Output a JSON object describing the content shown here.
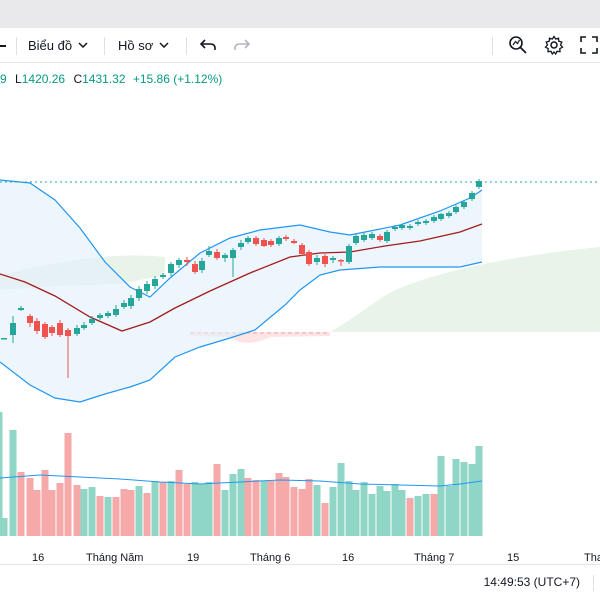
{
  "toolbar": {
    "chart_menu_label": "Biểu đồ",
    "profile_menu_label": "Hồ sơ",
    "icons": [
      "chevron-down-icon",
      "undo-icon",
      "redo-icon",
      "zoom-search-icon",
      "gear-icon",
      "fullscreen-icon"
    ]
  },
  "legend": {
    "low_prefix": "L",
    "low": "1420.26",
    "close_prefix": "C",
    "close": "1431.32",
    "change": "+15.86 (+1.12%)",
    "truncated_lead": "9"
  },
  "axis": {
    "labels": [
      "16",
      "Tháng Năm",
      "19",
      "Tháng 6",
      "16",
      "Tháng 7",
      "15",
      "Tha"
    ]
  },
  "status": {
    "clock": "14:49:53 (UTC+7)"
  },
  "colors": {
    "up": "#26a69a",
    "down": "#ef5350",
    "up_volume": "#8fd6c6",
    "down_volume": "#f6a9a9",
    "bollinger": "#2196f3",
    "basis": "#a31c1c",
    "cloud_green": "#e8f3ea",
    "cloud_red": "#fde5e5",
    "volume_ma": "#2196f3",
    "last_price_line": "#26a69a"
  },
  "chart_data": {
    "type": "candlestick",
    "overlays": [
      "bollinger-bands",
      "ichimoku-cloud",
      "volume-moving-average"
    ],
    "last_close": 1431.32,
    "low": 1420.26,
    "change": 15.86,
    "change_percent": 1.12
  }
}
